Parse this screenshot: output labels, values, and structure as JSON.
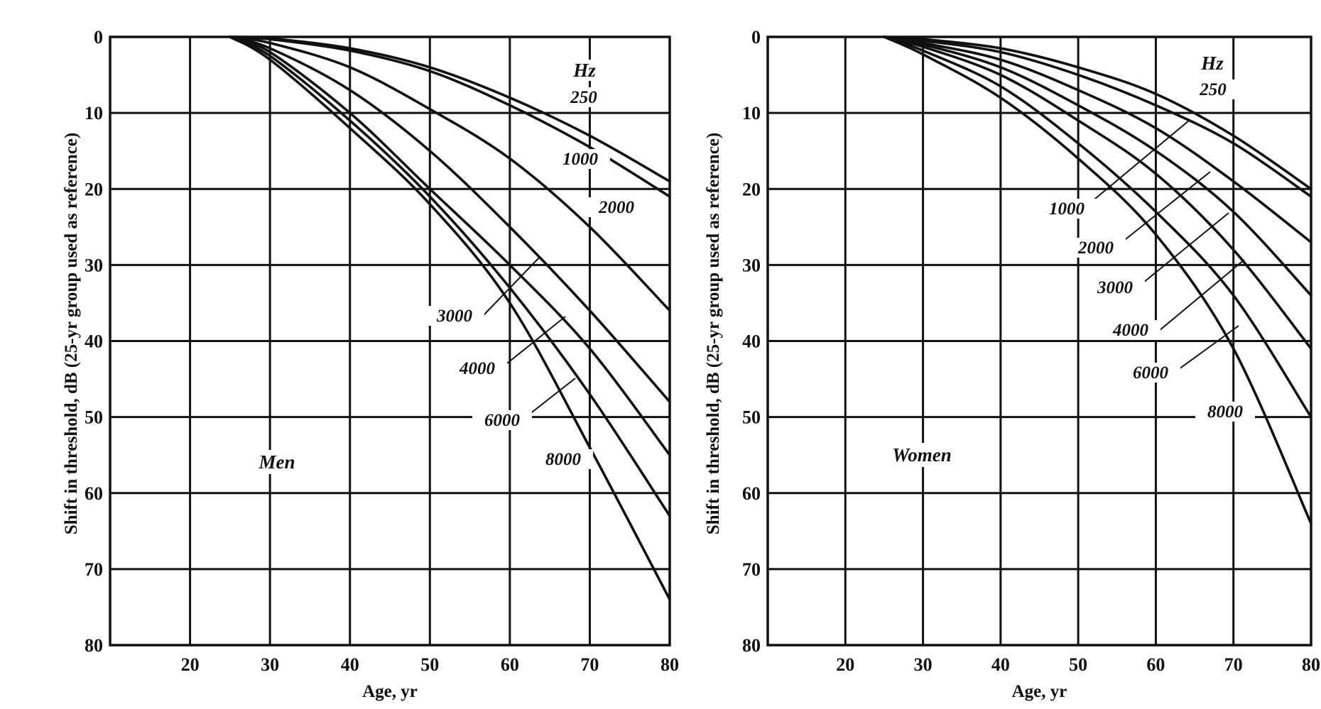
{
  "chart_data": [
    {
      "type": "line",
      "panel_label": "Men",
      "legend_title": "Hz",
      "xlabel": "Age, yr",
      "ylabel": "Shift in threshold, dB (25-yr group used as reference)",
      "xlim": [
        10,
        80
      ],
      "ylim": [
        0,
        80
      ],
      "y_inverted": true,
      "grid": true,
      "x_ticks": [
        "20",
        "30",
        "40",
        "50",
        "60",
        "70",
        "80"
      ],
      "y_ticks": [
        "0",
        "10",
        "20",
        "30",
        "40",
        "50",
        "60",
        "70",
        "80"
      ],
      "series": [
        {
          "name": "250",
          "x": [
            25,
            30,
            40,
            50,
            60,
            70,
            80
          ],
          "y": [
            0,
            0.2,
            1.5,
            4,
            8,
            13,
            19
          ]
        },
        {
          "name": "1000",
          "x": [
            25,
            30,
            40,
            50,
            60,
            70,
            80
          ],
          "y": [
            0,
            0.3,
            1.8,
            4.5,
            9,
            14.5,
            21
          ]
        },
        {
          "name": "2000",
          "x": [
            25,
            30,
            40,
            50,
            60,
            70,
            80
          ],
          "y": [
            0,
            0.8,
            4,
            9.5,
            16,
            25,
            36
          ]
        },
        {
          "name": "3000",
          "x": [
            25,
            30,
            40,
            50,
            60,
            70,
            80
          ],
          "y": [
            0,
            1.5,
            7,
            15,
            25,
            36,
            48
          ]
        },
        {
          "name": "4000",
          "x": [
            25,
            30,
            40,
            50,
            60,
            70,
            80
          ],
          "y": [
            0,
            2,
            10,
            20,
            30,
            41,
            55
          ]
        },
        {
          "name": "6000",
          "x": [
            25,
            30,
            40,
            50,
            60,
            70,
            80
          ],
          "y": [
            0,
            2.5,
            11,
            21,
            33,
            47,
            63
          ]
        },
        {
          "name": "8000",
          "x": [
            25,
            30,
            40,
            50,
            60,
            70,
            80
          ],
          "y": [
            0,
            3,
            12,
            22,
            35,
            54,
            74
          ]
        }
      ]
    },
    {
      "type": "line",
      "panel_label": "Women",
      "legend_title": "Hz",
      "xlabel": "Age, yr",
      "ylabel": "Shift in threshold, dB (25-yr group used as reference)",
      "xlim": [
        10,
        80
      ],
      "ylim": [
        0,
        80
      ],
      "y_inverted": true,
      "grid": true,
      "x_ticks": [
        "20",
        "30",
        "40",
        "50",
        "60",
        "70",
        "80"
      ],
      "y_ticks": [
        "0",
        "10",
        "20",
        "30",
        "40",
        "50",
        "60",
        "70",
        "80"
      ],
      "series": [
        {
          "name": "250",
          "x": [
            25,
            30,
            40,
            50,
            60,
            70,
            80
          ],
          "y": [
            0,
            0.3,
            1.5,
            4,
            7.5,
            13,
            20
          ]
        },
        {
          "name": "1000",
          "x": [
            25,
            30,
            40,
            50,
            60,
            70,
            80
          ],
          "y": [
            0,
            0.5,
            2,
            5,
            9,
            14,
            21
          ]
        },
        {
          "name": "2000",
          "x": [
            25,
            30,
            40,
            50,
            60,
            70,
            80
          ],
          "y": [
            0,
            0.8,
            3,
            7,
            12,
            19,
            27
          ]
        },
        {
          "name": "3000",
          "x": [
            25,
            30,
            40,
            50,
            60,
            70,
            80
          ],
          "y": [
            0,
            1,
            4,
            9,
            15,
            23,
            34
          ]
        },
        {
          "name": "4000",
          "x": [
            25,
            30,
            40,
            50,
            60,
            70,
            80
          ],
          "y": [
            0,
            1.3,
            5,
            11,
            18,
            28,
            41
          ]
        },
        {
          "name": "6000",
          "x": [
            25,
            30,
            40,
            50,
            60,
            70,
            80
          ],
          "y": [
            0,
            1.8,
            6.5,
            14,
            23,
            34,
            50
          ]
        },
        {
          "name": "8000",
          "x": [
            25,
            30,
            40,
            50,
            60,
            70,
            80
          ],
          "y": [
            0,
            2.3,
            8,
            16,
            26,
            41,
            64
          ]
        }
      ]
    }
  ]
}
